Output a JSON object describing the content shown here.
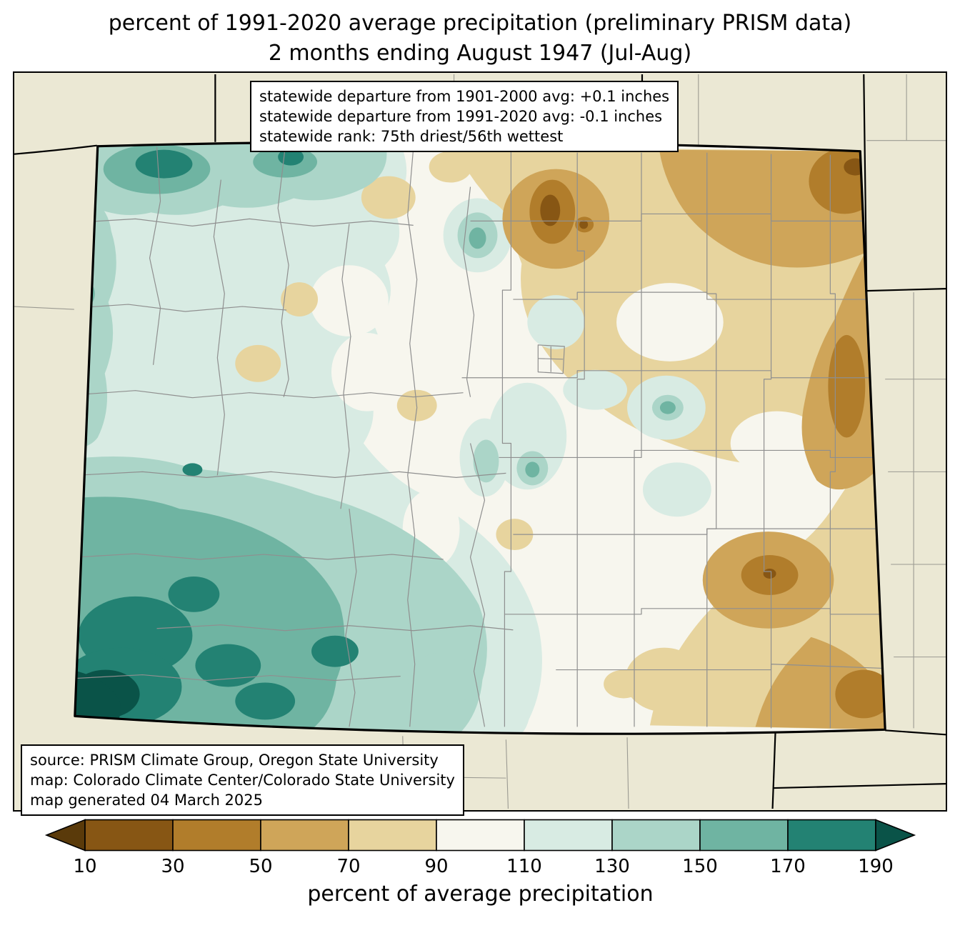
{
  "title": {
    "line1": "percent of 1991-2020 average precipitation (preliminary PRISM data)",
    "line2": "2 months ending August 1947 (Jul-Aug)"
  },
  "stats_box": {
    "lines": [
      "statewide departure from 1901-2000 avg: +0.1 inches",
      "statewide departure from 1991-2020 avg: -0.1 inches",
      "statewide rank: 75th driest/56th wettest"
    ]
  },
  "source_box": {
    "lines": [
      "source: PRISM Climate Group, Oregon State University",
      "map: Colorado Climate Center/Colorado State University",
      "map generated 04 March 2025"
    ]
  },
  "colorbar": {
    "caption": "percent of average precipitation",
    "tick_labels": [
      "10",
      "30",
      "50",
      "70",
      "90",
      "110",
      "130",
      "150",
      "170",
      "190"
    ],
    "segment_colors": [
      "#5a3a0a",
      "#875614",
      "#b17d2b",
      "#cfa559",
      "#e7d49e",
      "#f7f6ee",
      "#d8ebe3",
      "#abd5c8",
      "#6fb4a2",
      "#238273",
      "#0a5348"
    ]
  },
  "map": {
    "region": "Colorado",
    "background_color": "#ebe8d4",
    "county_line_color": "#8f8f8f",
    "state_border_color": "#000000"
  },
  "chart_data": {
    "type": "heatmap",
    "title": "percent of 1991-2020 average precipitation (preliminary PRISM data) — 2 months ending August 1947 (Jul-Aug)",
    "legend_label": "percent of average precipitation",
    "legend_ticks": [
      10,
      30,
      50,
      70,
      90,
      110,
      130,
      150,
      170,
      190
    ],
    "legend_interval_colors": {
      "under_10": "#5a3a0a",
      "10_30": "#875614",
      "30_50": "#b17d2b",
      "50_70": "#cfa559",
      "70_90": "#e7d49e",
      "90_110": "#f7f6ee",
      "110_130": "#d8ebe3",
      "130_150": "#abd5c8",
      "150_170": "#6fb4a2",
      "170_190": "#238273",
      "over_190": "#0a5348"
    },
    "statewide_departure_from_1901_2000_avg_inches": 0.1,
    "statewide_departure_from_1991_2020_avg_inches": -0.1,
    "statewide_rank": "75th driest/56th wettest",
    "regional_pattern": [
      "west and southwest Colorado above average (110-190%+), wettest at the far southwest corner",
      "central mountains near average (90-110%)",
      "northeast and eastern plains below average (30-90%) with small very dry spots (10-30%)"
    ]
  }
}
